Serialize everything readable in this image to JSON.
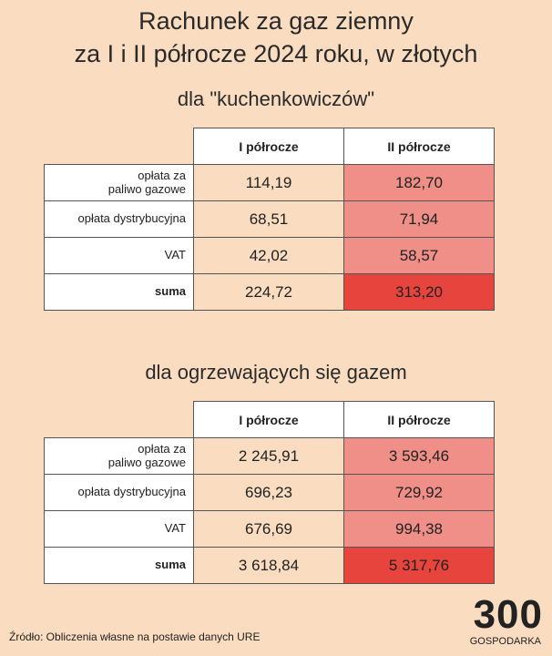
{
  "title_lines": [
    "Rachunek za gaz ziemny",
    "za I i II półrocze 2024 roku, w złotych"
  ],
  "sections": [
    {
      "heading": "dla \"kuchenkowiczów\"",
      "columns": [
        "I półrocze",
        "II półrocze"
      ],
      "rows": [
        [
          "opłata za\npaliwo gazowe",
          "114,19",
          "182,70"
        ],
        [
          "opłata dystrybucyjna",
          "68,51",
          "71,94"
        ],
        [
          "VAT",
          "42,02",
          "58,57"
        ],
        [
          "suma",
          "224,72",
          "313,20"
        ]
      ]
    },
    {
      "heading": "dla ogrzewających się gazem",
      "columns": [
        "I półrocze",
        "II półrocze"
      ],
      "rows": [
        [
          "opłata za\npaliwo gazowe",
          "2 245,91",
          "3 593,46"
        ],
        [
          "opłata dystrybucyjna",
          "696,23",
          "729,92"
        ],
        [
          "VAT",
          "676,69",
          "994,38"
        ],
        [
          "suma",
          "3 618,84",
          "5 317,76"
        ]
      ]
    }
  ],
  "source": "Źródło: Obliczenia własne na postawie danych URE",
  "logo": {
    "number": "300",
    "name": "GOSPODARKA"
  }
}
